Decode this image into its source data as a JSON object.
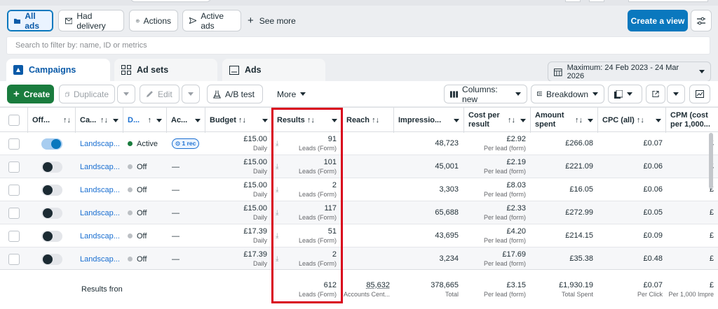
{
  "filters": {
    "all_ads": "All ads",
    "had_delivery": "Had delivery",
    "actions": "Actions",
    "active_ads": "Active ads",
    "see_more": "See more"
  },
  "create_view": "Create a view",
  "search": {
    "placeholder": "Search to filter by: name, ID or metrics"
  },
  "tabs": {
    "campaigns": "Campaigns",
    "ad_sets": "Ad sets",
    "ads": "Ads"
  },
  "date_range": "Maximum: 24 Feb 2023 - 24 Mar 2026",
  "toolbar": {
    "create": "Create",
    "duplicate": "Duplicate",
    "edit": "Edit",
    "ab_test": "A/B test",
    "more": "More",
    "columns": "Columns: new",
    "breakdown": "Breakdown"
  },
  "columns": {
    "off_on": "Off...",
    "campaign": "Ca...",
    "delivery": "D...",
    "actions": "Ac...",
    "budget": "Budget",
    "results": "Results",
    "reach": "Reach",
    "impressions": "Impressio...",
    "cost_per_result_1": "Cost per",
    "cost_per_result_2": "result",
    "amount_spent_1": "Amount",
    "amount_spent_2": "spent",
    "cpc": "CPC (all)",
    "cpm_1": "CPM (cost",
    "cpm_2": "per 1,000..."
  },
  "rows": [
    {
      "on": true,
      "name": "Landscap...",
      "delivery": "Active",
      "active": true,
      "actions": "1 rec",
      "budget": "£15.00",
      "budget_sub": "Daily",
      "results": "91",
      "results_sub": "Leads (Form)",
      "impressions": "48,723",
      "cost": "£2.92",
      "cost_sub": "Per lead (form)",
      "spent": "£266.08",
      "cpc": "£0.07",
      "cpm": "£"
    },
    {
      "on": false,
      "name": "Landscap...",
      "delivery": "Off",
      "active": false,
      "actions": "—",
      "budget": "£15.00",
      "budget_sub": "Daily",
      "results": "101",
      "results_sub": "Leads (Form)",
      "impressions": "45,001",
      "cost": "£2.19",
      "cost_sub": "Per lead (form)",
      "spent": "£221.09",
      "cpc": "£0.06",
      "cpm": "£"
    },
    {
      "on": false,
      "name": "Landscap...",
      "delivery": "Off",
      "active": false,
      "actions": "—",
      "budget": "£15.00",
      "budget_sub": "Daily",
      "results": "2",
      "results_sub": "Leads (Form)",
      "impressions": "3,303",
      "cost": "£8.03",
      "cost_sub": "Per lead (form)",
      "spent": "£16.05",
      "cpc": "£0.06",
      "cpm": "£"
    },
    {
      "on": false,
      "name": "Landscap...",
      "delivery": "Off",
      "active": false,
      "actions": "—",
      "budget": "£15.00",
      "budget_sub": "Daily",
      "results": "117",
      "results_sub": "Leads (Form)",
      "impressions": "65,688",
      "cost": "£2.33",
      "cost_sub": "Per lead (form)",
      "spent": "£272.99",
      "cpc": "£0.05",
      "cpm": "£"
    },
    {
      "on": false,
      "name": "Landscap...",
      "delivery": "Off",
      "active": false,
      "actions": "—",
      "budget": "£17.39",
      "budget_sub": "Daily",
      "results": "51",
      "results_sub": "Leads (Form)",
      "impressions": "43,695",
      "cost": "£4.20",
      "cost_sub": "Per lead (form)",
      "spent": "£214.15",
      "cpc": "£0.09",
      "cpm": "£"
    },
    {
      "on": false,
      "name": "Landscap...",
      "delivery": "Off",
      "active": false,
      "actions": "—",
      "budget": "£17.39",
      "budget_sub": "Daily",
      "results": "2",
      "results_sub": "Leads (Form)",
      "impressions": "3,234",
      "cost": "£17.69",
      "cost_sub": "Per lead (form)",
      "spent": "£35.38",
      "cpc": "£0.48",
      "cpm": "£"
    }
  ],
  "totals": {
    "label": "Results fron",
    "results": "612",
    "results_sub": "Leads (Form)",
    "reach": "85,632",
    "reach_sub": "Accounts Cent...",
    "impressions": "378,665",
    "impressions_sub": "Total",
    "cost": "£3.15",
    "cost_sub": "Per lead (form)",
    "spent": "£1,930.19",
    "spent_sub": "Total Spent",
    "cpc": "£0.07",
    "cpc_sub": "Per Click",
    "cpm": "£",
    "cpm_sub": "Per 1,000 Impre"
  },
  "colors": {
    "accent": "#0a78be",
    "create_green": "#1a7c3e",
    "highlight_red": "#d9001b"
  }
}
